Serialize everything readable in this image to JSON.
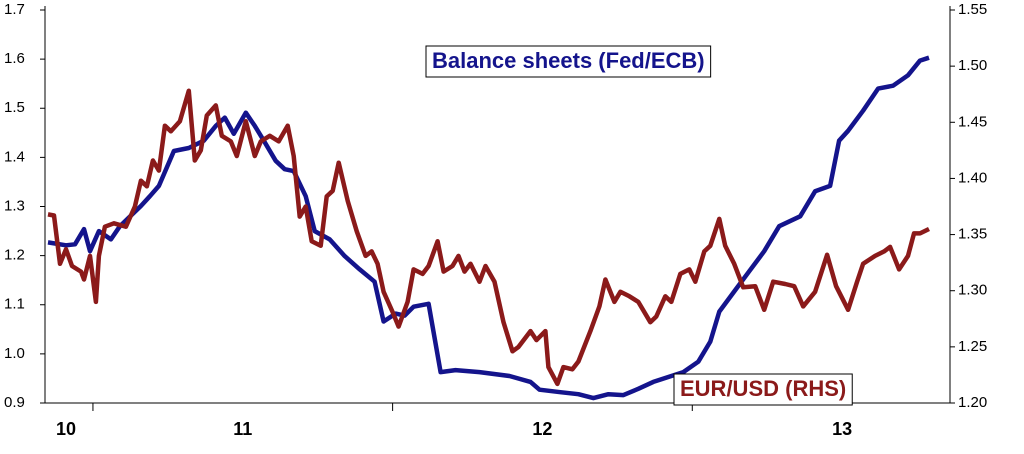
{
  "chart_data": {
    "type": "line",
    "xlim": [
      2010.34,
      2013.36
    ],
    "xticks": [
      {
        "value": 2010.41,
        "label": "10"
      },
      {
        "value": 2011,
        "label": "11"
      },
      {
        "value": 2012,
        "label": "12"
      },
      {
        "value": 2013,
        "label": "13"
      }
    ],
    "xminor_ticks": [
      2010.5,
      2011.5,
      2012.5
    ],
    "ylim": [
      0.9,
      1.7
    ],
    "yticks": [
      0.9,
      {
        "value": 1,
        "label": "1.0"
      },
      1.1,
      1.2,
      1.3,
      1.4,
      1.5,
      1.6,
      1.7
    ],
    "y2lim": [
      1.2,
      1.55
    ],
    "y2ticks": [
      {
        "value": 1.2,
        "label": "1.20"
      },
      1.25,
      {
        "value": 1.3,
        "label": "1.30"
      },
      1.35,
      {
        "value": 1.4,
        "label": "1.40"
      },
      1.45,
      {
        "value": 1.5,
        "label": "1.50"
      },
      1.55
    ],
    "grid": false,
    "series": [
      {
        "name": "Balance sheets (Fed/ECB)",
        "color": "#14148c",
        "axis": "y",
        "x": [
          2010.35,
          2010.41,
          2010.44,
          2010.47,
          2010.49,
          2010.52,
          2010.56,
          2010.59,
          2010.66,
          2010.69,
          2010.72,
          2010.77,
          2010.82,
          2010.87,
          2010.91,
          2010.94,
          2010.97,
          2011.01,
          2011.04,
          2011.07,
          2011.11,
          2011.14,
          2011.17,
          2011.21,
          2011.24,
          2011.29,
          2011.34,
          2011.39,
          2011.44,
          2011.47,
          2011.51,
          2011.54,
          2011.57,
          2011.62,
          2011.66,
          2011.71,
          2011.79,
          2011.89,
          2011.96,
          2011.99,
          2012.06,
          2012.12,
          2012.17,
          2012.22,
          2012.27,
          2012.32,
          2012.37,
          2012.42,
          2012.47,
          2012.52,
          2012.56,
          2012.59,
          2012.64,
          2012.69,
          2012.74,
          2012.79,
          2012.86,
          2012.91,
          2012.96,
          2012.99,
          2013.02,
          2013.07,
          2013.12,
          2013.17,
          2013.22,
          2013.26,
          2013.29
        ],
        "values": [
          1.227,
          1.221,
          1.223,
          1.254,
          1.209,
          1.25,
          1.233,
          1.26,
          1.301,
          1.321,
          1.342,
          1.413,
          1.419,
          1.434,
          1.464,
          1.481,
          1.448,
          1.491,
          1.464,
          1.434,
          1.393,
          1.376,
          1.372,
          1.321,
          1.25,
          1.233,
          1.199,
          1.172,
          1.147,
          1.066,
          1.082,
          1.078,
          1.096,
          1.102,
          0.963,
          0.967,
          0.963,
          0.955,
          0.943,
          0.927,
          0.922,
          0.918,
          0.91,
          0.918,
          0.916,
          0.929,
          0.943,
          0.953,
          0.963,
          0.984,
          1.025,
          1.086,
          1.127,
          1.168,
          1.209,
          1.26,
          1.28,
          1.331,
          1.342,
          1.434,
          1.454,
          1.495,
          1.54,
          1.546,
          1.567,
          1.597,
          1.603
        ]
      },
      {
        "name": "EUR/USD (RHS)",
        "color": "#8b1a1a",
        "axis": "y2",
        "x": [
          2010.35,
          2010.37,
          2010.39,
          2010.41,
          2010.43,
          2010.46,
          2010.47,
          2010.49,
          2010.51,
          2010.52,
          2010.54,
          2010.57,
          2010.61,
          2010.64,
          2010.66,
          2010.68,
          2010.7,
          2010.72,
          2010.74,
          2010.76,
          2010.79,
          2010.82,
          2010.84,
          2010.86,
          2010.88,
          2010.91,
          2010.93,
          2010.96,
          2010.98,
          2011.01,
          2011.04,
          2011.06,
          2011.09,
          2011.12,
          2011.15,
          2011.17,
          2011.19,
          2011.21,
          2011.23,
          2011.26,
          2011.28,
          2011.3,
          2011.32,
          2011.35,
          2011.36,
          2011.38,
          2011.41,
          2011.43,
          2011.45,
          2011.47,
          2011.5,
          2011.52,
          2011.55,
          2011.57,
          2011.6,
          2011.62,
          2011.65,
          2011.67,
          2011.7,
          2011.72,
          2011.74,
          2011.76,
          2011.79,
          2011.81,
          2011.84,
          2011.87,
          2011.9,
          2011.92,
          2011.96,
          2011.98,
          2012.01,
          2012.02,
          2012.05,
          2012.07,
          2012.1,
          2012.12,
          2012.16,
          2012.19,
          2012.21,
          2012.24,
          2012.26,
          2012.29,
          2012.32,
          2012.36,
          2012.38,
          2012.41,
          2012.43,
          2012.46,
          2012.49,
          2012.51,
          2012.54,
          2012.56,
          2012.59,
          2012.61,
          2012.64,
          2012.67,
          2012.71,
          2012.74,
          2012.77,
          2012.81,
          2012.84,
          2012.87,
          2012.91,
          2012.95,
          2012.98,
          2013.02,
          2013.05,
          2013.07,
          2013.11,
          2013.14,
          2013.16,
          2013.19,
          2013.22,
          2013.24,
          2013.26,
          2013.29
        ],
        "values": [
          1.368,
          1.367,
          1.324,
          1.337,
          1.322,
          1.317,
          1.31,
          1.331,
          1.29,
          1.331,
          1.357,
          1.36,
          1.357,
          1.375,
          1.398,
          1.393,
          1.416,
          1.407,
          1.447,
          1.442,
          1.451,
          1.478,
          1.416,
          1.425,
          1.456,
          1.465,
          1.438,
          1.433,
          1.42,
          1.451,
          1.42,
          1.433,
          1.438,
          1.433,
          1.447,
          1.42,
          1.366,
          1.375,
          1.344,
          1.34,
          1.384,
          1.389,
          1.414,
          1.38,
          1.371,
          1.353,
          1.331,
          1.335,
          1.324,
          1.299,
          1.281,
          1.268,
          1.29,
          1.319,
          1.315,
          1.322,
          1.344,
          1.317,
          1.322,
          1.331,
          1.317,
          1.324,
          1.308,
          1.322,
          1.308,
          1.272,
          1.246,
          1.25,
          1.264,
          1.256,
          1.264,
          1.232,
          1.217,
          1.232,
          1.23,
          1.237,
          1.264,
          1.286,
          1.31,
          1.29,
          1.299,
          1.295,
          1.29,
          1.272,
          1.277,
          1.295,
          1.29,
          1.315,
          1.319,
          1.308,
          1.335,
          1.34,
          1.364,
          1.34,
          1.324,
          1.303,
          1.304,
          1.283,
          1.308,
          1.306,
          1.304,
          1.286,
          1.299,
          1.332,
          1.304,
          1.283,
          1.308,
          1.324,
          1.331,
          1.335,
          1.339,
          1.319,
          1.331,
          1.351,
          1.351,
          1.355
        ]
      }
    ]
  }
}
